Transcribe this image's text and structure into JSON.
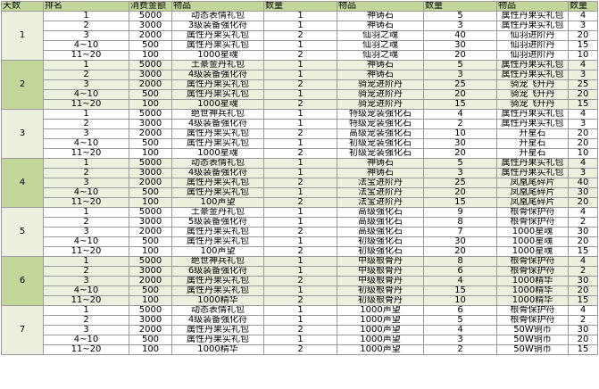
{
  "headers": [
    "天数",
    "排名",
    "消费金额",
    "物品",
    "数量",
    "物品",
    "数量",
    "物品",
    "数量"
  ],
  "days": [
    {
      "day": "1",
      "rows": [
        [
          "1",
          "5000",
          "动态表情礼包",
          "1",
          "神铸石",
          "5",
          "属性丹果实礼包",
          "4"
        ],
        [
          "2",
          "3000",
          "3级装备强化符",
          "1",
          "神铸石",
          "3",
          "属性丹果实礼包",
          "3"
        ],
        [
          "3",
          "2000",
          "属性丹果实礼包",
          "2",
          "仙羽之魂",
          "40",
          "仙羽进阶丹",
          "20"
        ],
        [
          "4~10",
          "500",
          "属性丹果实礼包",
          "1",
          "仙羽之魂",
          "30",
          "仙羽进阶丹",
          "15"
        ],
        [
          "11~20",
          "100",
          "1000星魂",
          "2",
          "仙羽之魂",
          "20",
          "仙羽进阶丹",
          "10"
        ]
      ]
    },
    {
      "day": "2",
      "rows": [
        [
          "1",
          "5000",
          "土豪金丹礼包",
          "1",
          "神铸石",
          "5",
          "属性丹果实礼包",
          "4"
        ],
        [
          "2",
          "3000",
          "4级装备强化符",
          "1",
          "神铸石",
          "3",
          "属性丹果实礼包",
          "3"
        ],
        [
          "3",
          "2000",
          "属性丹果实礼包",
          "2",
          "骑宠进阶丹",
          "25",
          "骑宠飞升丹",
          "25"
        ],
        [
          "4~10",
          "500",
          "属性丹果实礼包",
          "1",
          "骑宠进阶丹",
          "20",
          "骑宠飞升丹",
          "20"
        ],
        [
          "11~20",
          "100",
          "1000星魂",
          "2",
          "骑宠进阶丹",
          "15",
          "骑宠飞升丹",
          "15"
        ]
      ]
    },
    {
      "day": "3",
      "rows": [
        [
          "1",
          "5000",
          "绝世神兵礼包",
          "1",
          "特级宠装强化石",
          "4",
          "属性丹果实礼包",
          "4"
        ],
        [
          "2",
          "3000",
          "4级装备强化符",
          "1",
          "特级宠装强化石",
          "2",
          "属性丹果实礼包",
          "3"
        ],
        [
          "3",
          "2000",
          "属性丹果实礼包",
          "2",
          "高级宠装强化石",
          "10",
          "升星石",
          "20"
        ],
        [
          "4~10",
          "500",
          "属性丹果实礼包",
          "1",
          "初级宠装强化石",
          "30",
          "升星石",
          "20"
        ],
        [
          "11~20",
          "100",
          "1000星魂",
          "2",
          "初级宠装强化石",
          "20",
          "升星石",
          "10"
        ]
      ]
    },
    {
      "day": "4",
      "rows": [
        [
          "1",
          "5000",
          "动态表情礼包",
          "1",
          "神铸石",
          "5",
          "属性丹果实礼包",
          "4"
        ],
        [
          "2",
          "3000",
          "4级装备强化符",
          "1",
          "神铸石",
          "3",
          "属性丹果实礼包",
          "3"
        ],
        [
          "3",
          "2000",
          "属性丹果实礼包",
          "2",
          "法宝进阶丹",
          "25",
          "凤凰尾碎片",
          "40"
        ],
        [
          "4~10",
          "500",
          "属性丹果实礼包",
          "1",
          "法宝进阶丹",
          "20",
          "凤凰尾碎片",
          "30"
        ],
        [
          "11~20",
          "100",
          "100声望",
          "2",
          "法宝进阶丹",
          "15",
          "凤凰尾碎片",
          "20"
        ]
      ]
    },
    {
      "day": "5",
      "rows": [
        [
          "1",
          "5000",
          "土豪金丹礼包",
          "1",
          "高级强化石",
          "9",
          "根骨保护符",
          "4"
        ],
        [
          "2",
          "3000",
          "5级装备强化符",
          "1",
          "高级强化石",
          "8",
          "根骨保护符",
          "2"
        ],
        [
          "3",
          "2000",
          "属性丹果实礼包",
          "2",
          "高级强化石",
          "7",
          "1000星魂",
          "30"
        ],
        [
          "4~10",
          "500",
          "属性丹果实礼包",
          "1",
          "初级强化石",
          "30",
          "1000星魂",
          "20"
        ],
        [
          "11~20",
          "100",
          "100声望",
          "2",
          "初级强化石",
          "20",
          "1000星魂",
          "15"
        ]
      ]
    },
    {
      "day": "6",
      "rows": [
        [
          "1",
          "5000",
          "绝世神兵礼包",
          "1",
          "中级根骨丹",
          "8",
          "根骨保护符",
          "4"
        ],
        [
          "2",
          "3000",
          "6级装备强化符",
          "1",
          "中级根骨丹",
          "6",
          "根骨保护符",
          "2"
        ],
        [
          "3",
          "2000",
          "属性丹果实礼包",
          "2",
          "中级根骨丹",
          "4",
          "1000精华",
          "30"
        ],
        [
          "4~10",
          "500",
          "属性丹果实礼包",
          "1",
          "初级根骨丹",
          "15",
          "1000精华",
          "20"
        ],
        [
          "11~20",
          "100",
          "1000精华",
          "2",
          "初级根骨丹",
          "10",
          "1000精华",
          "15"
        ]
      ]
    },
    {
      "day": "7",
      "rows": [
        [
          "1",
          "5000",
          "动态表情礼包",
          "1",
          "1000声望",
          "6",
          "根骨保护符",
          "4"
        ],
        [
          "2",
          "3000",
          "4级装备强化符",
          "1",
          "1000声望",
          "5",
          "根骨保护符",
          "2"
        ],
        [
          "3",
          "2000",
          "属性丹果实礼包",
          "2",
          "1000声望",
          "4",
          "50W铜币",
          "30"
        ],
        [
          "4~10",
          "500",
          "属性丹果实礼包",
          "1",
          "1000声望",
          "3",
          "50W铜币",
          "20"
        ],
        [
          "11~20",
          "100",
          "1000精华",
          "2",
          "1000声望",
          "2",
          "50W铜币",
          "15"
        ]
      ]
    }
  ]
}
